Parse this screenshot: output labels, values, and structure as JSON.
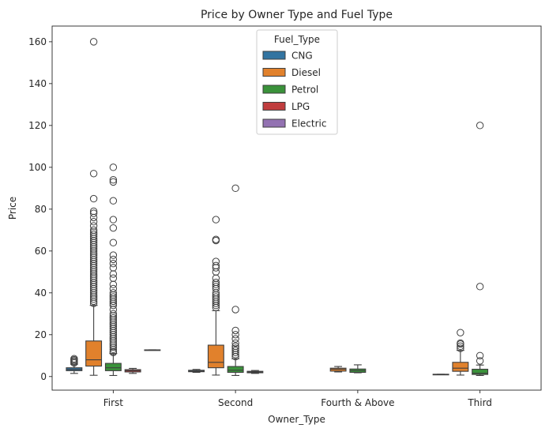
{
  "chart_data": {
    "type": "box",
    "title": "Price by Owner Type and Fuel Type",
    "xlabel": "Owner_Type",
    "ylabel": "Price",
    "ylim": [
      -6.5,
      167.5
    ],
    "yticks": [
      0,
      20,
      40,
      60,
      80,
      100,
      120,
      140,
      160
    ],
    "categories": [
      "First",
      "Second",
      "Fourth & Above",
      "Third"
    ],
    "legend": {
      "title": "Fuel_Type",
      "placement": "top-center",
      "entries": [
        "CNG",
        "Diesel",
        "Petrol",
        "LPG",
        "Electric"
      ]
    },
    "series": [
      {
        "name": "CNG",
        "color": "#3274a1",
        "boxes": [
          {
            "category": "First",
            "whislo": 1.5,
            "q1": 2.8,
            "med": 3.4,
            "q3": 4.2,
            "whishi": 5.9,
            "fliers": [
              6.5,
              7.0,
              7.5,
              8.0,
              8.5
            ]
          },
          {
            "category": "Second",
            "whislo": 2.0,
            "q1": 2.3,
            "med": 2.6,
            "q3": 3.0,
            "whishi": 3.4,
            "fliers": []
          },
          {
            "category": "Third",
            "whislo": 1.0,
            "q1": 1.0,
            "med": 1.0,
            "q3": 1.1,
            "whishi": 1.1,
            "fliers": []
          }
        ]
      },
      {
        "name": "Diesel",
        "color": "#e1812c",
        "boxes": [
          {
            "category": "First",
            "whislo": 0.6,
            "q1": 5.0,
            "med": 8.0,
            "q3": 17.0,
            "whishi": 34.0,
            "fliers": [
              35,
              36,
              37,
              38,
              39,
              40,
              41,
              42,
              43,
              44,
              45,
              46,
              47,
              48,
              49,
              50,
              51,
              52,
              53,
              54,
              55,
              56,
              57,
              58,
              59,
              60,
              61,
              62,
              63,
              64,
              65,
              66,
              67,
              68,
              69,
              70,
              72,
              74,
              76,
              78,
              79,
              85,
              97,
              160
            ]
          },
          {
            "category": "Second",
            "whislo": 0.7,
            "q1": 4.2,
            "med": 6.8,
            "q3": 15.0,
            "whishi": 31.5,
            "fliers": [
              33,
              34,
              35,
              36,
              37,
              38,
              39,
              40,
              42,
              43,
              44,
              45,
              47,
              50,
              52,
              53,
              55,
              65,
              65.5,
              75
            ]
          },
          {
            "category": "Fourth & Above",
            "whislo": 2.2,
            "q1": 2.6,
            "med": 3.5,
            "q3": 4.0,
            "whishi": 4.8,
            "fliers": []
          },
          {
            "category": "Third",
            "whislo": 0.7,
            "q1": 2.5,
            "med": 4.0,
            "q3": 6.8,
            "whishi": 12.5,
            "fliers": [
              13.5,
              14.5,
              15.5,
              16.0,
              21.0
            ]
          }
        ]
      },
      {
        "name": "Petrol",
        "color": "#3a923a",
        "boxes": [
          {
            "category": "First",
            "whislo": 0.5,
            "q1": 2.8,
            "med": 4.2,
            "q3": 6.3,
            "whishi": 11.0,
            "fliers": [
              11.5,
              12,
              13,
              14,
              15,
              16,
              17,
              18,
              19,
              20,
              21,
              22,
              23,
              24,
              25,
              26,
              27,
              28,
              29,
              30,
              32,
              34,
              35,
              36,
              37,
              38,
              39,
              40,
              42,
              44,
              47,
              49,
              52,
              54,
              56,
              58,
              64,
              71,
              75,
              84,
              93,
              94,
              100
            ]
          },
          {
            "category": "Second",
            "whislo": 0.5,
            "q1": 2.0,
            "med": 3.0,
            "q3": 4.8,
            "whishi": 8.5,
            "fliers": [
              9.5,
              10.5,
              11.5,
              12.5,
              13.5,
              14.5,
              16,
              18,
              20,
              22,
              32,
              90
            ]
          },
          {
            "category": "Fourth & Above",
            "whislo": 1.8,
            "q1": 2.0,
            "med": 2.8,
            "q3": 3.6,
            "whishi": 5.6,
            "fliers": []
          },
          {
            "category": "Third",
            "whislo": 0.5,
            "q1": 1.0,
            "med": 1.6,
            "q3": 3.5,
            "whishi": 5.5,
            "fliers": [
              7.5,
              10.0,
              43.0,
              120.0
            ]
          }
        ]
      },
      {
        "name": "LPG",
        "color": "#c03d3e",
        "boxes": [
          {
            "category": "First",
            "whislo": 1.5,
            "q1": 2.2,
            "med": 2.8,
            "q3": 3.3,
            "whishi": 3.9,
            "fliers": []
          },
          {
            "category": "Second",
            "whislo": 1.5,
            "q1": 1.8,
            "med": 2.2,
            "q3": 2.5,
            "whishi": 2.9,
            "fliers": []
          }
        ]
      },
      {
        "name": "Electric",
        "color": "#9372b2",
        "boxes": [
          {
            "category": "First",
            "whislo": 12.75,
            "q1": 12.75,
            "med": 12.75,
            "q3": 12.75,
            "whishi": 12.75,
            "fliers": []
          }
        ]
      }
    ]
  }
}
